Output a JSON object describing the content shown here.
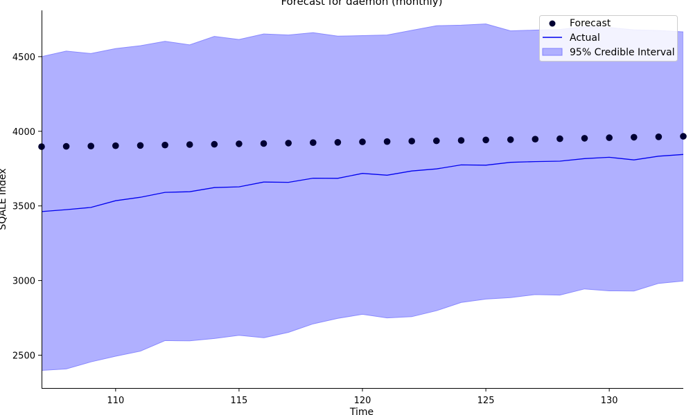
{
  "chart_data": {
    "type": "line",
    "title": "Forecast for daemon (monthly)",
    "xlabel": "Time",
    "ylabel": "SQALE Index",
    "xlim": [
      107,
      133
    ],
    "ylim": [
      2280,
      4810
    ],
    "xticks": [
      110,
      115,
      120,
      125,
      130
    ],
    "yticks": [
      2500,
      3000,
      3500,
      4000,
      4500
    ],
    "x": [
      107,
      108,
      109,
      110,
      111,
      112,
      113,
      114,
      115,
      116,
      117,
      118,
      119,
      120,
      121,
      122,
      123,
      124,
      125,
      126,
      127,
      128,
      129,
      130,
      131,
      132,
      133
    ],
    "series": [
      {
        "name": "Forecast",
        "kind": "scatter",
        "color": "#000033",
        "values": [
          3897,
          3899,
          3901,
          3903,
          3905,
          3908,
          3911,
          3913,
          3916,
          3918,
          3921,
          3924,
          3926,
          3929,
          3931,
          3934,
          3936,
          3939,
          3942,
          3944,
          3947,
          3950,
          3953,
          3957,
          3960,
          3963,
          3966
        ]
      },
      {
        "name": "Actual",
        "kind": "line",
        "color": "#0000ee",
        "values": [
          3462,
          3475,
          3490,
          3535,
          3558,
          3591,
          3595,
          3623,
          3628,
          3660,
          3658,
          3686,
          3685,
          3718,
          3706,
          3734,
          3748,
          3775,
          3773,
          3792,
          3797,
          3800,
          3817,
          3826,
          3808,
          3833,
          3845
        ]
      },
      {
        "name": "95% Credible Interval",
        "kind": "band",
        "color": "#b0b0ff",
        "lower": [
          2398,
          2408,
          2455,
          2493,
          2527,
          2598,
          2596,
          2612,
          2633,
          2617,
          2653,
          2710,
          2747,
          2774,
          2750,
          2758,
          2798,
          2853,
          2876,
          2886,
          2906,
          2903,
          2944,
          2931,
          2930,
          2981,
          2997
        ],
        "upper": [
          4500,
          4537,
          4521,
          4554,
          4573,
          4603,
          4579,
          4636,
          4615,
          4652,
          4645,
          4661,
          4637,
          4641,
          4645,
          4676,
          4707,
          4711,
          4719,
          4673,
          4678,
          4682,
          4700,
          4695,
          4680,
          4675,
          4666
        ]
      }
    ],
    "legend_position": "top-right",
    "spines": "left-bottom"
  }
}
